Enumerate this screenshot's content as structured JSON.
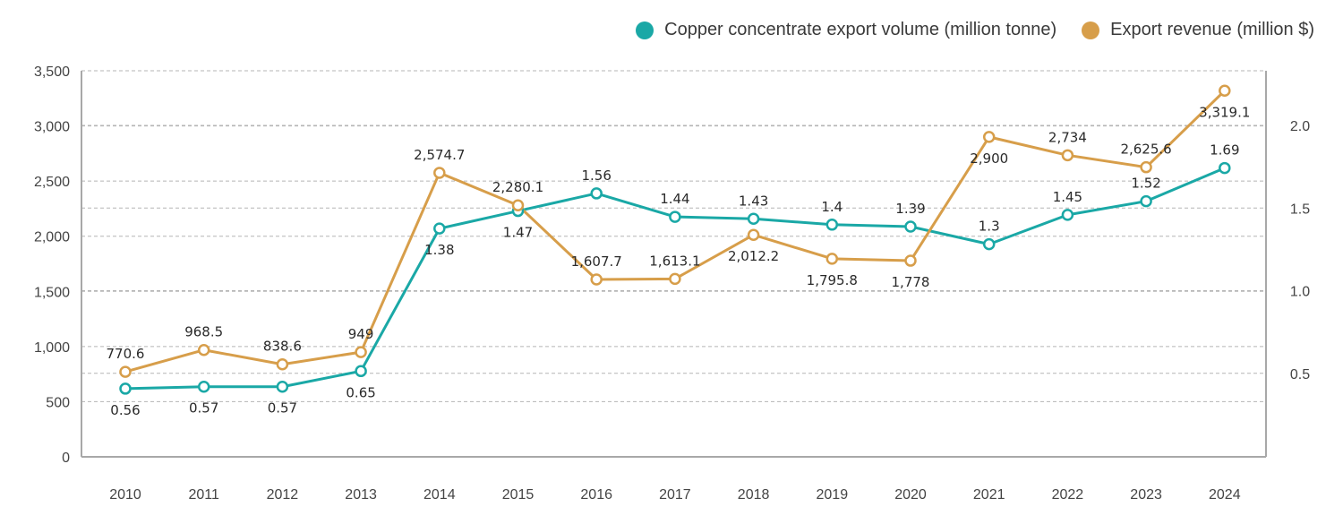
{
  "legend": {
    "volume_label": "Copper concentrate export volume (million tonne)",
    "revenue_label": "Export revenue (million $)"
  },
  "colors": {
    "volume": "#1aa8a6",
    "revenue": "#d79e4a",
    "grid": "#b5b5b5",
    "axis": "#a8a8a8"
  },
  "chart_data": {
    "type": "line",
    "title": "",
    "xlabel": "",
    "ylabel_left": "Export revenue (million $)",
    "ylabel_right": "Copper concentrate export volume (million tonne)",
    "x": [
      "2010",
      "2011",
      "2012",
      "2013",
      "2014",
      "2015",
      "2016",
      "2017",
      "2018",
      "2019",
      "2020",
      "2021",
      "2022",
      "2023",
      "2024"
    ],
    "left_axis": {
      "ylim": [
        0,
        3500
      ],
      "ticks": [
        0,
        500,
        1000,
        1500,
        2000,
        2500,
        3000,
        3500
      ],
      "tick_labels": [
        "0",
        "500",
        "1,000",
        "1,500",
        "2,000",
        "2,500",
        "3,000",
        "3,500"
      ]
    },
    "right_axis": {
      "ticks": [
        0.5,
        1.0,
        1.5,
        2.0
      ],
      "tick_labels": [
        "0.5",
        "1.0",
        "1.5",
        "2.0"
      ]
    },
    "grid": true,
    "legend_position": "top-right",
    "series": [
      {
        "name": "Copper concentrate export volume (million tonne)",
        "axis": "right",
        "color": "#1aa8a6",
        "values": [
          0.56,
          0.57,
          0.57,
          0.65,
          1.38,
          1.47,
          1.56,
          1.44,
          1.43,
          1.4,
          1.39,
          1.3,
          1.45,
          1.52,
          1.69
        ],
        "labels": [
          "0.56",
          "0.57",
          "0.57",
          "0.65",
          "1.38",
          "1.47",
          "1.56",
          "1.44",
          "1.43",
          "1.4",
          "1.39",
          "1.3",
          "1.45",
          "1.52",
          "1.69"
        ],
        "label_side": [
          "below",
          "below",
          "below",
          "below",
          "below",
          "below",
          "above",
          "above",
          "above",
          "above",
          "above",
          "above",
          "above",
          "above",
          "above"
        ]
      },
      {
        "name": "Export revenue (million $)",
        "axis": "left",
        "color": "#d79e4a",
        "values": [
          770.6,
          968.5,
          838.6,
          949,
          2574.7,
          2280.1,
          1607.7,
          1613.1,
          2012.2,
          1795.8,
          1778,
          2900,
          2734,
          2625.6,
          3319.1
        ],
        "labels": [
          "770.6",
          "968.5",
          "838.6",
          "949",
          "2,574.7",
          "2,280.1",
          "1,607.7",
          "1,613.1",
          "2,012.2",
          "1,795.8",
          "1,778",
          "2,900",
          "2,734",
          "2,625.6",
          "3,319.1"
        ],
        "label_side": [
          "above",
          "above",
          "above",
          "above",
          "above",
          "above",
          "above",
          "above",
          "below",
          "below",
          "below",
          "below",
          "above",
          "above",
          "below"
        ]
      }
    ]
  }
}
